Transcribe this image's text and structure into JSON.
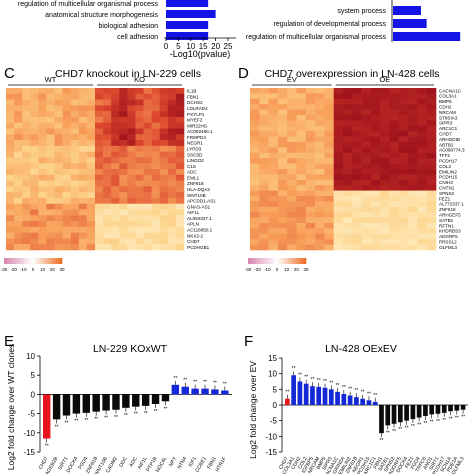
{
  "panelA": {
    "go_terms": [
      "regulation of multicellular organismal process",
      "anatomical structure morphogenesis",
      "biological adhesion",
      "cell adhesion"
    ],
    "bar_values": [
      17,
      20,
      17,
      17
    ],
    "xlabel": "-Log10(pvalue)",
    "ticks": [
      "0",
      "5",
      "10",
      "15",
      "20",
      "25"
    ]
  },
  "panelB": {
    "go_terms": [
      "system process",
      "regulation of developmental process",
      "regulation of multicellular organismal process"
    ],
    "bar_values": [
      10,
      12,
      24
    ]
  },
  "panelC": {
    "letter": "C",
    "title": "CHD7 knockout in LN-229 cells",
    "group1": "WT",
    "group2": "KO",
    "genes": [
      "IL1B",
      "FBN1",
      "DCHS2",
      "LDLRAD4",
      "PXYLP1",
      "MYEF2",
      "MIR22HG",
      "AC092480.1",
      "FRMPD4",
      "NEGR1",
      "LYPD3",
      "SSC5D",
      "LINGO2",
      "C1S",
      "ADC",
      "EML1",
      "ZNF618",
      "HLA-DQA2",
      "WNT10B",
      "APCDD1-AS1",
      "GNAS-AS1",
      "AIF1L",
      "AL050327.1",
      "APLN",
      "AC118050.1",
      "NKX2-2",
      "CHD7",
      "PCDHGB1"
    ],
    "legend_ticks": [
      "-30",
      "-20",
      "-10",
      "0",
      "10",
      "20",
      "30"
    ]
  },
  "panelD": {
    "letter": "D",
    "title": "CHD7 overexpression in LN-428 cells",
    "group1": "EV",
    "group2": "OE",
    "genes": [
      "CACNA1C",
      "COL3A1",
      "BMP5",
      "CDH2",
      "NRCAM",
      "ST8SIA3",
      "SIPR3",
      "ARC1C1",
      "CHD7",
      "ARHGDIB",
      "ABTB2",
      "AC096774.3",
      "TFF2",
      "PCDH17",
      "COL2",
      "EMILIN2",
      "PCDH15",
      "CNIH3",
      "CNTN1",
      "SPNS2",
      "FEZ1",
      "AL772337.1",
      "ZNF618",
      "ARHGEF5",
      "SATB1",
      "RFTN1",
      "KHDRBS3",
      "ADGRF5",
      "PRSS12",
      "OLFML3"
    ],
    "legend_ticks": [
      "-30",
      "-20",
      "-10",
      "0",
      "10",
      "20",
      "30"
    ]
  },
  "panelE": {
    "letter": "E",
    "title": "LN-229 KOxWT",
    "ylabel": "Log2 fold change over WT clones",
    "yticks": [
      "10",
      "5",
      "0",
      "-5",
      "-10",
      "-15"
    ],
    "xlabels": [
      "CHD7",
      "MAGEB2B",
      "SIRT1",
      "DOCK4",
      "FGD4",
      "ZNF618",
      "WNT10B",
      "CADM2",
      "DDC",
      "ADC",
      "AIF1L",
      "PTP1B",
      "NOC4L",
      "NPY",
      "NTN4",
      "KIF1",
      "CCBE1",
      "FBN1",
      "HTR1F"
    ]
  },
  "panelF": {
    "letter": "F",
    "title": "LN-428 OExEV",
    "ylabel": "Log2 fold change over EV",
    "yticks": [
      "15",
      "10",
      "5",
      "0",
      "-5",
      "-10",
      "-15"
    ],
    "xlabels": [
      "CHD7",
      "COL3A1",
      "CDH2",
      "COL2",
      "IGFBP5",
      "NRCAM",
      "BMP5",
      "SIPR3",
      "CACNA1C",
      "GRIN2A",
      "EMILIN2",
      "ZNF618",
      "NEGR1",
      "PCDH15",
      "ARC1C1",
      "FBN1",
      "SATB1",
      "SPNS2",
      "ADGRF5",
      "DOCK4",
      "FEZ1",
      "FGD4",
      "TRPC6",
      "ANO1",
      "SIRT1",
      "PCDH17",
      "SCN1A",
      "PDE1A",
      "OLFML3"
    ]
  },
  "chart_data": [
    {
      "type": "bar",
      "title": "",
      "categories": [
        "regulation of multicellular organismal process",
        "anatomical structure morphogenesis",
        "biological adhesion",
        "cell adhesion"
      ],
      "values": [
        17,
        20,
        17,
        17
      ],
      "xlabel": "-Log10(pvalue)",
      "xlim": [
        0,
        25
      ]
    },
    {
      "type": "bar",
      "title": "",
      "categories": [
        "system process",
        "regulation of developmental process",
        "regulation of multicellular organismal process"
      ],
      "values": [
        10,
        12,
        24
      ]
    },
    {
      "type": "bar",
      "title": "LN-229 KOxWT",
      "ylabel": "Log2 fold change over WT clones",
      "categories": [
        "CHD7",
        "MAGEB2B",
        "SIRT1",
        "DOCK4",
        "FGD4",
        "ZNF618",
        "WNT10B",
        "CADM2",
        "DDC",
        "ADC",
        "AIF1L",
        "PTP1B",
        "NOC4L",
        "NPY",
        "NTN4",
        "KIF1",
        "CCBE1",
        "FBN1",
        "HTR1F"
      ],
      "values": [
        -11.5,
        -6.5,
        -5.5,
        -5,
        -4.8,
        -4.5,
        -4.2,
        -4,
        -3.5,
        -3.2,
        -3,
        -2.5,
        -1.8,
        2.5,
        2,
        1.5,
        1.5,
        1.3,
        1
      ],
      "ylim": [
        -15,
        10
      ]
    },
    {
      "type": "bar",
      "title": "LN-428 OExEV",
      "ylabel": "Log2 fold change over EV",
      "categories": [
        "CHD7",
        "COL3A1",
        "CDH2",
        "COL2",
        "IGFBP5",
        "NRCAM",
        "BMP5",
        "SIPR3",
        "CACNA1C",
        "GRIN2A",
        "EMILIN2",
        "ZNF618",
        "NEGR1",
        "PCDH15",
        "ARC1C1",
        "FBN1",
        "SATB1",
        "SPNS2",
        "ADGRF5",
        "DOCK4",
        "FEZ1",
        "FGD4",
        "TRPC6",
        "ANO1",
        "SIRT1",
        "PCDH17",
        "SCN1A",
        "PDE1A",
        "OLFML3"
      ],
      "values": [
        2,
        9.5,
        7.5,
        6.8,
        6,
        5.8,
        5.5,
        5,
        4.2,
        3.5,
        3,
        2.5,
        2,
        1.5,
        1,
        -9,
        -6.5,
        -6,
        -5.5,
        -5,
        -4.5,
        -4,
        -3.5,
        -3,
        -2.8,
        -2.5,
        -2,
        -1.8,
        -1.5
      ],
      "ylim": [
        -15,
        15
      ]
    }
  ]
}
